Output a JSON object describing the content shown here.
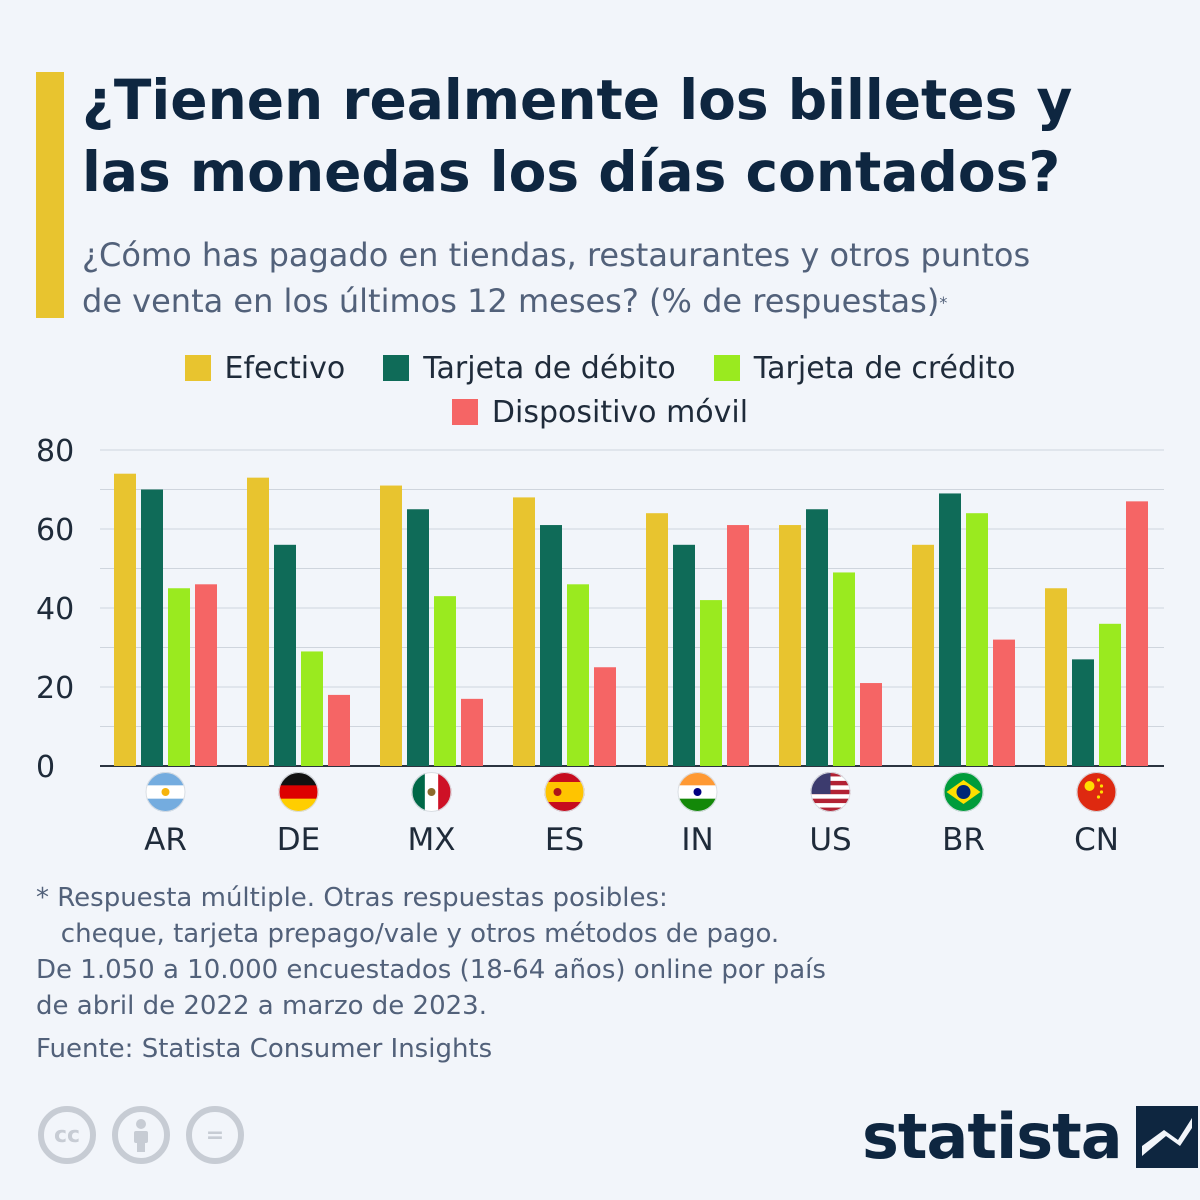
{
  "header": {
    "title": "¿Tienen realmente los billetes y\nlas monedas los días contados?",
    "subtitle": "¿Cómo has pagado en tiendas, restaurantes y otros puntos\nde venta en los últimos 12 meses? (% de respuestas)",
    "subtitle_mark": "*"
  },
  "chart_data": {
    "type": "bar",
    "categories": [
      "AR",
      "DE",
      "MX",
      "ES",
      "IN",
      "US",
      "BR",
      "CN"
    ],
    "flags": [
      "argentina-flag-icon",
      "germany-flag-icon",
      "mexico-flag-icon",
      "spain-flag-icon",
      "india-flag-icon",
      "usa-flag-icon",
      "brazil-flag-icon",
      "china-flag-icon"
    ],
    "series": [
      {
        "name": "Efectivo",
        "color": "#e8c42f",
        "values": [
          74,
          73,
          71,
          68,
          64,
          61,
          56,
          45
        ]
      },
      {
        "name": "Tarjeta de débito",
        "color": "#0f6b58",
        "values": [
          70,
          56,
          65,
          61,
          56,
          65,
          69,
          27
        ]
      },
      {
        "name": "Tarjeta de crédito",
        "color": "#9aea1f",
        "values": [
          45,
          29,
          43,
          46,
          42,
          49,
          64,
          36
        ]
      },
      {
        "name": "Dispositivo móvil",
        "color": "#f56565",
        "values": [
          46,
          18,
          17,
          25,
          61,
          21,
          32,
          67
        ]
      }
    ],
    "ylim": [
      0,
      80
    ],
    "yticks": [
      0,
      20,
      40,
      60,
      80
    ],
    "grid": true,
    "legend_position": "top"
  },
  "footnote": {
    "lines": [
      "* Respuesta múltiple. Otras respuestas posibles:",
      "   cheque, tarjeta prepago/vale y otros métodos de pago.",
      "De 1.050 a 10.000 encuestados (18-64 años) online por país",
      "de abril de 2022 a marzo de 2023."
    ],
    "source": "Fuente: Statista Consumer Insights"
  },
  "license": {
    "icons": [
      "cc-icon",
      "attribution-icon",
      "no-derivatives-icon"
    ],
    "cc_label": "cc",
    "eq_label": "="
  },
  "brand": {
    "name": "statista",
    "icon": "statista-logo-icon"
  }
}
